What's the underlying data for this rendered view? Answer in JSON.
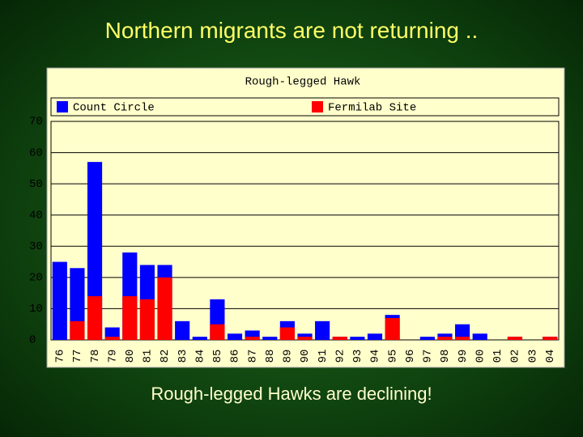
{
  "title": "Northern migrants are not returning ..",
  "caption": "Rough-legged Hawks are declining!",
  "chart_data": {
    "type": "bar",
    "title": "Rough-legged Hawk",
    "categories": [
      "76",
      "77",
      "78",
      "79",
      "80",
      "81",
      "82",
      "83",
      "84",
      "85",
      "86",
      "87",
      "88",
      "89",
      "90",
      "91",
      "92",
      "93",
      "94",
      "95",
      "96",
      "97",
      "98",
      "99",
      "00",
      "01",
      "02",
      "03",
      "04"
    ],
    "series": [
      {
        "name": "Count Circle",
        "color": "#0000ff",
        "values": [
          25,
          23,
          57,
          4,
          28,
          24,
          24,
          6,
          1,
          13,
          2,
          3,
          1,
          6,
          2,
          6,
          1,
          1,
          2,
          8,
          0,
          1,
          2,
          5,
          2,
          0,
          1,
          0,
          1
        ]
      },
      {
        "name": "Fermilab Site",
        "color": "#ff0000",
        "values": [
          0,
          6,
          14,
          1,
          14,
          13,
          20,
          0,
          0,
          5,
          0,
          1,
          0,
          4,
          1,
          0,
          1,
          0,
          0,
          7,
          0,
          0,
          1,
          1,
          0,
          0,
          1,
          0,
          1
        ]
      }
    ],
    "ylim": [
      0,
      70
    ],
    "yticks": [
      0,
      10,
      20,
      30,
      40,
      50,
      60,
      70
    ],
    "grid": true,
    "legend": "top"
  }
}
